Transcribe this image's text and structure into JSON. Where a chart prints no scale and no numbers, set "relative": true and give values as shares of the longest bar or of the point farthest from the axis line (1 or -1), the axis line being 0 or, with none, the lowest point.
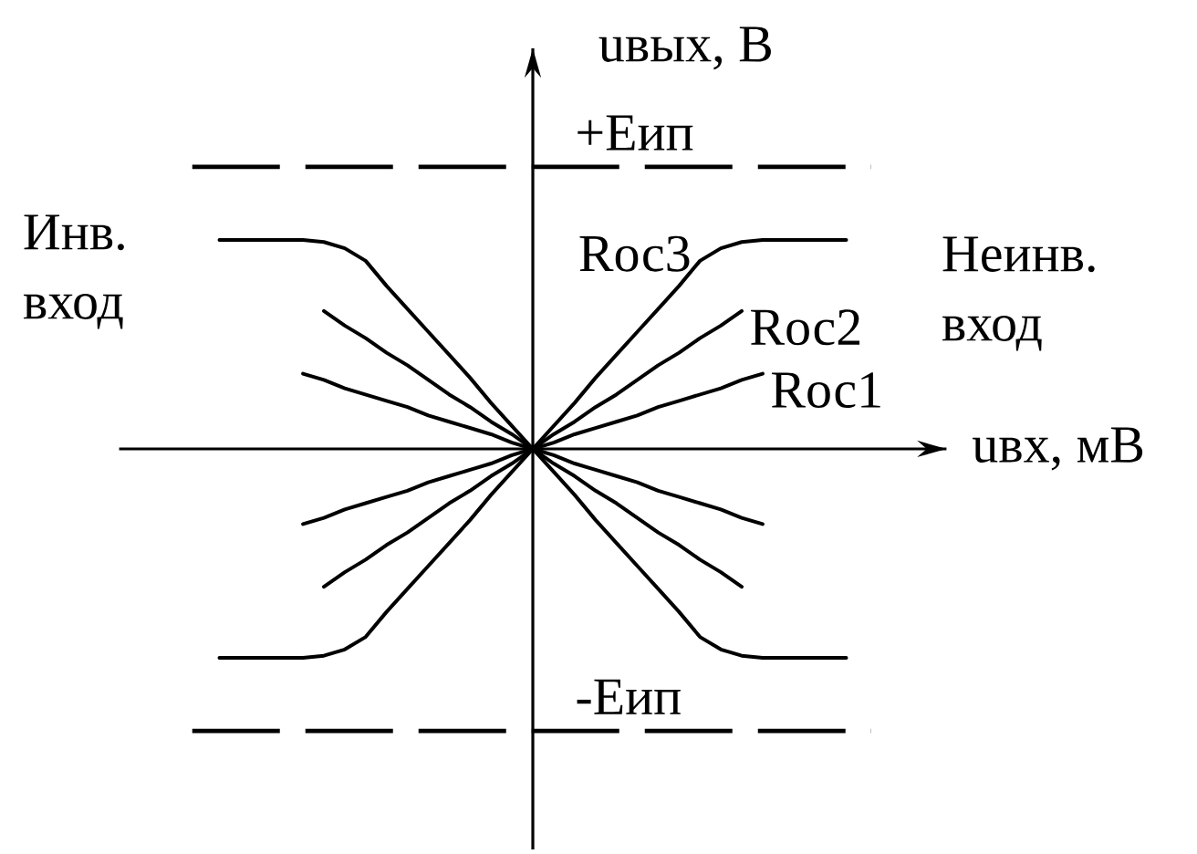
{
  "chart_data": {
    "type": "line",
    "relative": true,
    "xlabel": "uвх, мВ",
    "ylabel": "uвых, В",
    "annotations": [
      "Инв. вход",
      "Неинв. вход"
    ],
    "line_style": "solid",
    "marker": "none",
    "categories": [
      null,
      null,
      null,
      null,
      null,
      null,
      null,
      null,
      null,
      null,
      null,
      null,
      null,
      null,
      null,
      null,
      null,
      null,
      null,
      null,
      null,
      null,
      null,
      null,
      null,
      null,
      null,
      null,
      null,
      null,
      null
    ],
    "series": [
      {
        "name": "Rос3",
        "color": "#000000",
        "values": [
          -1,
          -1,
          -1,
          -1,
          -1,
          -0.99,
          -0.96,
          -0.9,
          -0.78,
          -0.67,
          -0.56,
          -0.45,
          -0.34,
          -0.22,
          -0.11,
          0,
          0.11,
          0.22,
          0.34,
          0.45,
          0.56,
          0.67,
          0.78,
          0.9,
          0.96,
          0.99,
          1,
          1,
          1,
          1,
          1
        ]
      },
      {
        "name": "Rос2",
        "color": "#000000",
        "values": [
          null,
          null,
          null,
          null,
          null,
          -0.66,
          -0.59,
          -0.53,
          -0.46,
          -0.4,
          -0.33,
          -0.26,
          -0.2,
          -0.13,
          -0.07,
          0,
          0.07,
          0.13,
          0.2,
          0.26,
          0.33,
          0.4,
          0.46,
          0.53,
          0.59,
          0.66,
          null,
          null,
          null,
          null,
          null
        ]
      },
      {
        "name": "Rос1",
        "color": "#000000",
        "values": [
          null,
          null,
          null,
          null,
          -0.36,
          -0.33,
          -0.29,
          -0.26,
          -0.23,
          -0.2,
          -0.16,
          -0.13,
          -0.1,
          -0.07,
          -0.03,
          0,
          0.03,
          0.07,
          0.1,
          0.13,
          0.16,
          0.2,
          0.23,
          0.26,
          0.29,
          0.33,
          0.36,
          null,
          null,
          null,
          null
        ]
      },
      {
        "color": "#000000",
        "values": [
          1,
          1,
          1,
          1,
          1,
          0.99,
          0.96,
          0.9,
          0.78,
          0.67,
          0.56,
          0.45,
          0.34,
          0.22,
          0.11,
          0,
          -0.11,
          -0.22,
          -0.34,
          -0.45,
          -0.56,
          -0.67,
          -0.78,
          -0.9,
          -0.96,
          -0.99,
          -1,
          -1,
          -1,
          -1,
          -1
        ]
      },
      {
        "color": "#000000",
        "values": [
          null,
          null,
          null,
          null,
          null,
          0.66,
          0.59,
          0.53,
          0.46,
          0.4,
          0.33,
          0.26,
          0.2,
          0.13,
          0.07,
          0,
          -0.07,
          -0.13,
          -0.2,
          -0.26,
          -0.33,
          -0.4,
          -0.46,
          -0.53,
          -0.59,
          -0.66,
          null,
          null,
          null,
          null,
          null
        ]
      },
      {
        "color": "#000000",
        "values": [
          null,
          null,
          null,
          null,
          0.36,
          0.33,
          0.29,
          0.26,
          0.23,
          0.2,
          0.16,
          0.13,
          0.1,
          0.07,
          0.03,
          0,
          -0.03,
          -0.07,
          -0.1,
          -0.13,
          -0.16,
          -0.2,
          -0.23,
          -0.26,
          -0.29,
          -0.33,
          -0.36,
          null,
          null,
          null,
          null
        ]
      }
    ],
    "ref_lines": [
      {
        "axis": "y",
        "value": 1.35,
        "label": "+Eип",
        "line_style": "dashed",
        "color": "#000000"
      },
      {
        "axis": "y",
        "value": -1.35,
        "label": "-Eип",
        "line_style": "dashed",
        "color": "#000000"
      }
    ]
  }
}
